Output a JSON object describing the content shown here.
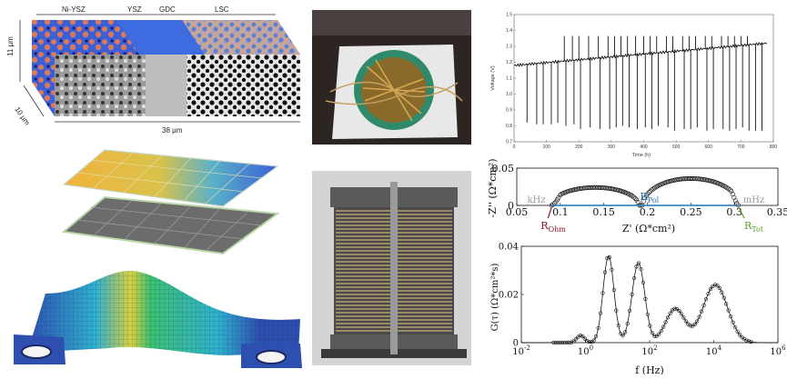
{
  "microstructure": {
    "layers": [
      "Ni-YSZ",
      "YSZ",
      "GDC",
      "LSC"
    ],
    "height_label": "11 µm",
    "depth_label": "10 µm",
    "length_label": "38 µm"
  },
  "voltage_plot": {
    "chart_data": {
      "type": "line",
      "xlabel": "Time (h)",
      "ylabel": "Voltage (V)",
      "xlim": [
        0,
        800
      ],
      "ylim": [
        0.7,
        1.5
      ],
      "xticks": [
        0,
        100,
        200,
        300,
        400,
        500,
        600,
        700,
        800
      ],
      "yticks": [
        0.7,
        0.8,
        0.9,
        1.0,
        1.1,
        1.2,
        1.3,
        1.4,
        1.5
      ],
      "base_voltage": {
        "start": 1.18,
        "end": 1.32
      },
      "upper_spikes": [
        155,
        180,
        200,
        230,
        260,
        290,
        310,
        330,
        350,
        375,
        400,
        420,
        440,
        470,
        490,
        520,
        540,
        560,
        590,
        610,
        640,
        660,
        680,
        700,
        720
      ],
      "dips": [
        {
          "t": 40,
          "v": 0.82
        },
        {
          "t": 70,
          "v": 0.81
        },
        {
          "t": 90,
          "v": 0.81
        },
        {
          "t": 115,
          "v": 0.81
        },
        {
          "t": 135,
          "v": 0.82
        },
        {
          "t": 160,
          "v": 0.8
        },
        {
          "t": 185,
          "v": 0.81
        },
        {
          "t": 205,
          "v": 0.78
        },
        {
          "t": 235,
          "v": 0.79
        },
        {
          "t": 265,
          "v": 0.78
        },
        {
          "t": 295,
          "v": 0.78
        },
        {
          "t": 315,
          "v": 0.79
        },
        {
          "t": 335,
          "v": 0.8
        },
        {
          "t": 355,
          "v": 0.79
        },
        {
          "t": 380,
          "v": 0.78
        },
        {
          "t": 405,
          "v": 0.79
        },
        {
          "t": 425,
          "v": 0.78
        },
        {
          "t": 445,
          "v": 0.8
        },
        {
          "t": 475,
          "v": 0.79
        },
        {
          "t": 495,
          "v": 0.77
        },
        {
          "t": 525,
          "v": 0.78
        },
        {
          "t": 545,
          "v": 0.78
        },
        {
          "t": 565,
          "v": 0.79
        },
        {
          "t": 595,
          "v": 0.77
        },
        {
          "t": 615,
          "v": 0.78
        },
        {
          "t": 645,
          "v": 0.78
        },
        {
          "t": 665,
          "v": 0.77
        },
        {
          "t": 685,
          "v": 0.78
        },
        {
          "t": 705,
          "v": 0.79
        },
        {
          "t": 725,
          "v": 0.77
        },
        {
          "t": 745,
          "v": 0.77
        },
        {
          "t": 765,
          "v": 0.77
        }
      ]
    }
  },
  "impedance_plot": {
    "chart_data": {
      "type": "scatter",
      "xlabel": "Z' (Ω*cm²)",
      "ylabel": "-Z'' (Ω*cm²)",
      "xlim": [
        0.05,
        0.35
      ],
      "ylim": [
        0,
        0.05
      ],
      "xticks": [
        "0.05",
        "0.1",
        "0.15",
        "0.2",
        "0.25",
        "0.3",
        "0.35"
      ],
      "yticks": [
        "0",
        "0.05"
      ],
      "r_ohm": 0.09,
      "r_tot": 0.305,
      "arcs": [
        {
          "center": 0.14,
          "width": 0.05,
          "height": 0.024
        },
        {
          "center": 0.25,
          "width": 0.055,
          "height": 0.036
        }
      ],
      "annotations": {
        "khz": "kHz",
        "mhz": "mHz",
        "r_pol": "R",
        "r_pol_sub": "Pol",
        "r_ohm": "R",
        "r_ohm_sub": "Ohm",
        "r_tot": "R",
        "r_tot_sub": "Tot"
      },
      "colors": {
        "r_pol": "#1f77b4",
        "r_ohm": "#8b1a2b",
        "r_tot": "#5aa02c",
        "freq": "#999999"
      }
    }
  },
  "drt_plot": {
    "chart_data": {
      "type": "line",
      "xlabel": "f (Hz)",
      "ylabel": "G(τ) (Ω*cm²*s)",
      "xscale": "log",
      "xlim": [
        0.01,
        1000000
      ],
      "ylim": [
        0,
        0.04
      ],
      "xticks_exp": [
        -2,
        0,
        2,
        4,
        6
      ],
      "yticks": [
        "0",
        "0.02",
        "0.04"
      ],
      "peaks": [
        {
          "log_f": -0.15,
          "height": 0.003,
          "width": 0.12
        },
        {
          "log_f": 0.72,
          "height": 0.036,
          "width": 0.17
        },
        {
          "log_f": 1.65,
          "height": 0.033,
          "width": 0.2
        },
        {
          "log_f": 2.8,
          "height": 0.014,
          "width": 0.3
        },
        {
          "log_f": 4.05,
          "height": 0.024,
          "width": 0.38
        }
      ]
    }
  }
}
